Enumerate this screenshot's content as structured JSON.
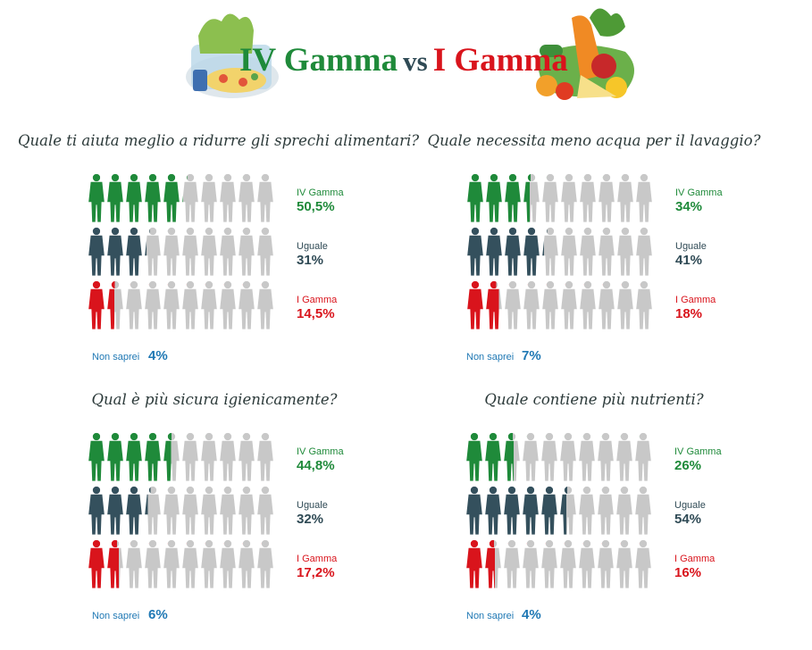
{
  "header": {
    "title_iv": "IV Gamma",
    "title_vs": "vs",
    "title_i": "I Gamma",
    "icons": [
      "salad-package-icon",
      "vegetables-basket-icon"
    ]
  },
  "colors": {
    "iv": "#1f8a3a",
    "uguale": "#34505d",
    "i": "#d9141c",
    "empty": "#c8c8c8",
    "non_saprei": "#1f78b4"
  },
  "chart_data": [
    {
      "type": "pictogram",
      "title": "Quale ti aiuta meglio a ridurre gli sprechi alimentari?",
      "people_per_row": 10,
      "series": [
        {
          "name": "IV Gamma",
          "value": 50.5,
          "label": "50,5%"
        },
        {
          "name": "Uguale",
          "value": 31,
          "label": "31%"
        },
        {
          "name": "I Gamma",
          "value": 14.5,
          "label": "14,5%"
        }
      ],
      "non_saprei": {
        "label": "Non saprei",
        "value": 4,
        "value_label": "4%"
      }
    },
    {
      "type": "pictogram",
      "title": "Quale necessita meno acqua per il lavaggio?",
      "people_per_row": 10,
      "series": [
        {
          "name": "IV Gamma",
          "value": 34,
          "label": "34%"
        },
        {
          "name": "Uguale",
          "value": 41,
          "label": "41%"
        },
        {
          "name": "I Gamma",
          "value": 18,
          "label": "18%"
        }
      ],
      "non_saprei": {
        "label": "Non saprei",
        "value": 7,
        "value_label": "7%"
      }
    },
    {
      "type": "pictogram",
      "title": "Qual è più sicura igienicamente?",
      "people_per_row": 10,
      "series": [
        {
          "name": "IV Gamma",
          "value": 44.8,
          "label": "44,8%"
        },
        {
          "name": "Uguale",
          "value": 32,
          "label": "32%"
        },
        {
          "name": "I Gamma",
          "value": 17.2,
          "label": "17,2%"
        }
      ],
      "non_saprei": {
        "label": "Non saprei",
        "value": 6,
        "value_label": "6%"
      }
    },
    {
      "type": "pictogram",
      "title": "Quale contiene più nutrienti?",
      "people_per_row": 10,
      "series": [
        {
          "name": "IV Gamma",
          "value": 26,
          "label": "26%"
        },
        {
          "name": "Uguale",
          "value": 54,
          "label": "54%"
        },
        {
          "name": "I Gamma",
          "value": 16,
          "label": "16%"
        }
      ],
      "non_saprei": {
        "label": "Non saprei",
        "value": 4,
        "value_label": "4%"
      }
    }
  ]
}
